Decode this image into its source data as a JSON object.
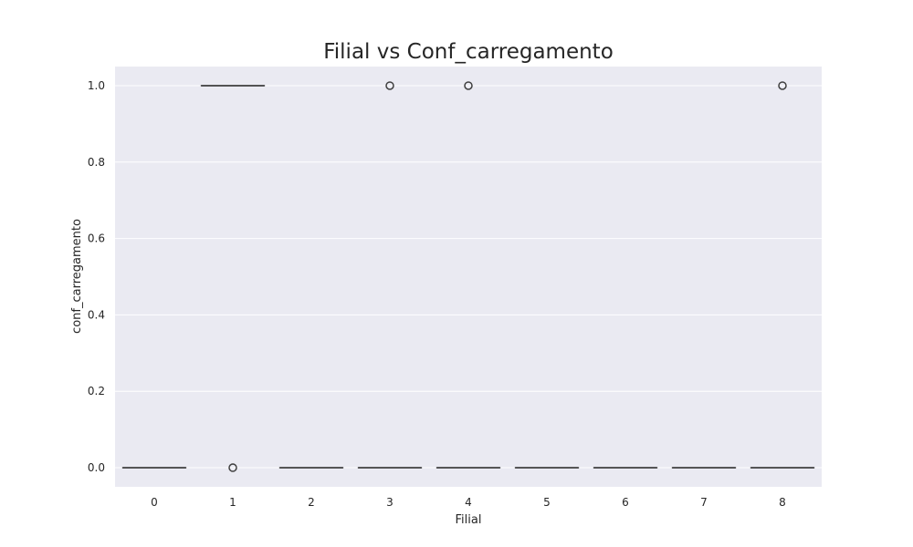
{
  "chart_data": {
    "type": "box",
    "title": "Filial vs Conf_carregamento",
    "xlabel": "Filial",
    "ylabel": "conf_carregamento",
    "categories": [
      "0",
      "1",
      "2",
      "3",
      "4",
      "5",
      "6",
      "7",
      "8"
    ],
    "ylim": [
      -0.05,
      1.05
    ],
    "yticks": [
      "0.0",
      "0.2",
      "0.4",
      "0.6",
      "0.8",
      "1.0"
    ],
    "grid": true,
    "boxes": [
      {
        "category": "0",
        "q1": 0,
        "median": 0,
        "q3": 0,
        "whisker_low": 0,
        "whisker_high": 0,
        "outliers": []
      },
      {
        "category": "1",
        "q1": 1,
        "median": 1,
        "q3": 1,
        "whisker_low": 1,
        "whisker_high": 1,
        "outliers": [
          0
        ]
      },
      {
        "category": "2",
        "q1": 0,
        "median": 0,
        "q3": 0,
        "whisker_low": 0,
        "whisker_high": 0,
        "outliers": []
      },
      {
        "category": "3",
        "q1": 0,
        "median": 0,
        "q3": 0,
        "whisker_low": 0,
        "whisker_high": 0,
        "outliers": [
          1
        ]
      },
      {
        "category": "4",
        "q1": 0,
        "median": 0,
        "q3": 0,
        "whisker_low": 0,
        "whisker_high": 0,
        "outliers": [
          1
        ]
      },
      {
        "category": "5",
        "q1": 0,
        "median": 0,
        "q3": 0,
        "whisker_low": 0,
        "whisker_high": 0,
        "outliers": []
      },
      {
        "category": "6",
        "q1": 0,
        "median": 0,
        "q3": 0,
        "whisker_low": 0,
        "whisker_high": 0,
        "outliers": []
      },
      {
        "category": "7",
        "q1": 0,
        "median": 0,
        "q3": 0,
        "whisker_low": 0,
        "whisker_high": 0,
        "outliers": []
      },
      {
        "category": "8",
        "q1": 0,
        "median": 0,
        "q3": 0,
        "whisker_low": 0,
        "whisker_high": 0,
        "outliers": [
          1
        ]
      }
    ],
    "colors": {
      "plot_background": "#eaeaf2",
      "grid": "#ffffff",
      "box_line": "#3f3f3f",
      "text": "#262626"
    }
  }
}
